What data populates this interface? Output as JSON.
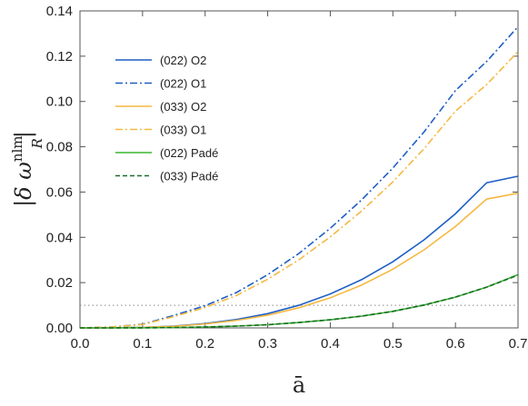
{
  "chart_data": {
    "type": "line",
    "xlabel": "ā",
    "ylabel": "|δ ω^nlm_R|",
    "ylabel_parts": {
      "open": "|δ ω",
      "sup": "nlm",
      "sub": "R",
      "close": "|"
    },
    "xlim": [
      0.0,
      0.7
    ],
    "ylim": [
      0.0,
      0.14
    ],
    "xticks": [
      "0.0",
      "0.1",
      "0.2",
      "0.3",
      "0.4",
      "0.5",
      "0.6",
      "0.7"
    ],
    "yticks": [
      "0.00",
      "0.02",
      "0.04",
      "0.06",
      "0.08",
      "0.10",
      "0.12",
      "0.14"
    ],
    "grid": false,
    "legend_position": "top-left",
    "x": [
      0.0,
      0.05,
      0.1,
      0.15,
      0.2,
      0.25,
      0.3,
      0.35,
      0.4,
      0.45,
      0.5,
      0.55,
      0.6,
      0.65,
      0.7
    ],
    "series": [
      {
        "name": "(022) O2",
        "color": "#1f5fc4",
        "dash": "solid",
        "values": [
          0,
          3e-05,
          0.00024,
          0.0008,
          0.0019,
          0.0037,
          0.0063,
          0.01,
          0.015,
          0.0213,
          0.0292,
          0.0389,
          0.0504,
          0.0641,
          0.067
        ]
      },
      {
        "name": "(022) O1",
        "color": "#1f5fc4",
        "dash": "dashdot",
        "values": [
          0,
          0.0004,
          0.0016,
          0.0055,
          0.0098,
          0.0156,
          0.0235,
          0.0329,
          0.044,
          0.0565,
          0.0706,
          0.0866,
          0.1048,
          0.1177,
          0.133
        ]
      },
      {
        "name": "(033) O2",
        "color": "#f5b942",
        "dash": "solid",
        "values": [
          0,
          3e-05,
          0.00021,
          0.0007,
          0.0017,
          0.0033,
          0.0056,
          0.0089,
          0.0133,
          0.0189,
          0.0259,
          0.0345,
          0.0448,
          0.0569,
          0.0595
        ]
      },
      {
        "name": "(033) O1",
        "color": "#f5b942",
        "dash": "dashdot",
        "values": [
          0,
          0.0004,
          0.0015,
          0.005,
          0.009,
          0.0143,
          0.0215,
          0.0301,
          0.0402,
          0.0516,
          0.0645,
          0.0792,
          0.0957,
          0.1075,
          0.122
        ]
      },
      {
        "name": "(022) Padé",
        "color": "#3cb52e",
        "dash": "solid",
        "values": [
          0,
          0.0,
          4e-05,
          0.00015,
          0.0004,
          0.0008,
          0.0014,
          0.0024,
          0.0036,
          0.0052,
          0.0073,
          0.0101,
          0.0136,
          0.018,
          0.0235
        ]
      },
      {
        "name": "(033) Padé",
        "color": "#1a6b2a",
        "dash": "dashed",
        "values": [
          0,
          0.0,
          4e-05,
          0.00015,
          0.0004,
          0.0008,
          0.0014,
          0.0024,
          0.0036,
          0.0052,
          0.0073,
          0.0101,
          0.0136,
          0.018,
          0.0233
        ]
      }
    ],
    "reference_line": {
      "y": 0.01,
      "color": "#888888",
      "style": "dotted"
    }
  }
}
